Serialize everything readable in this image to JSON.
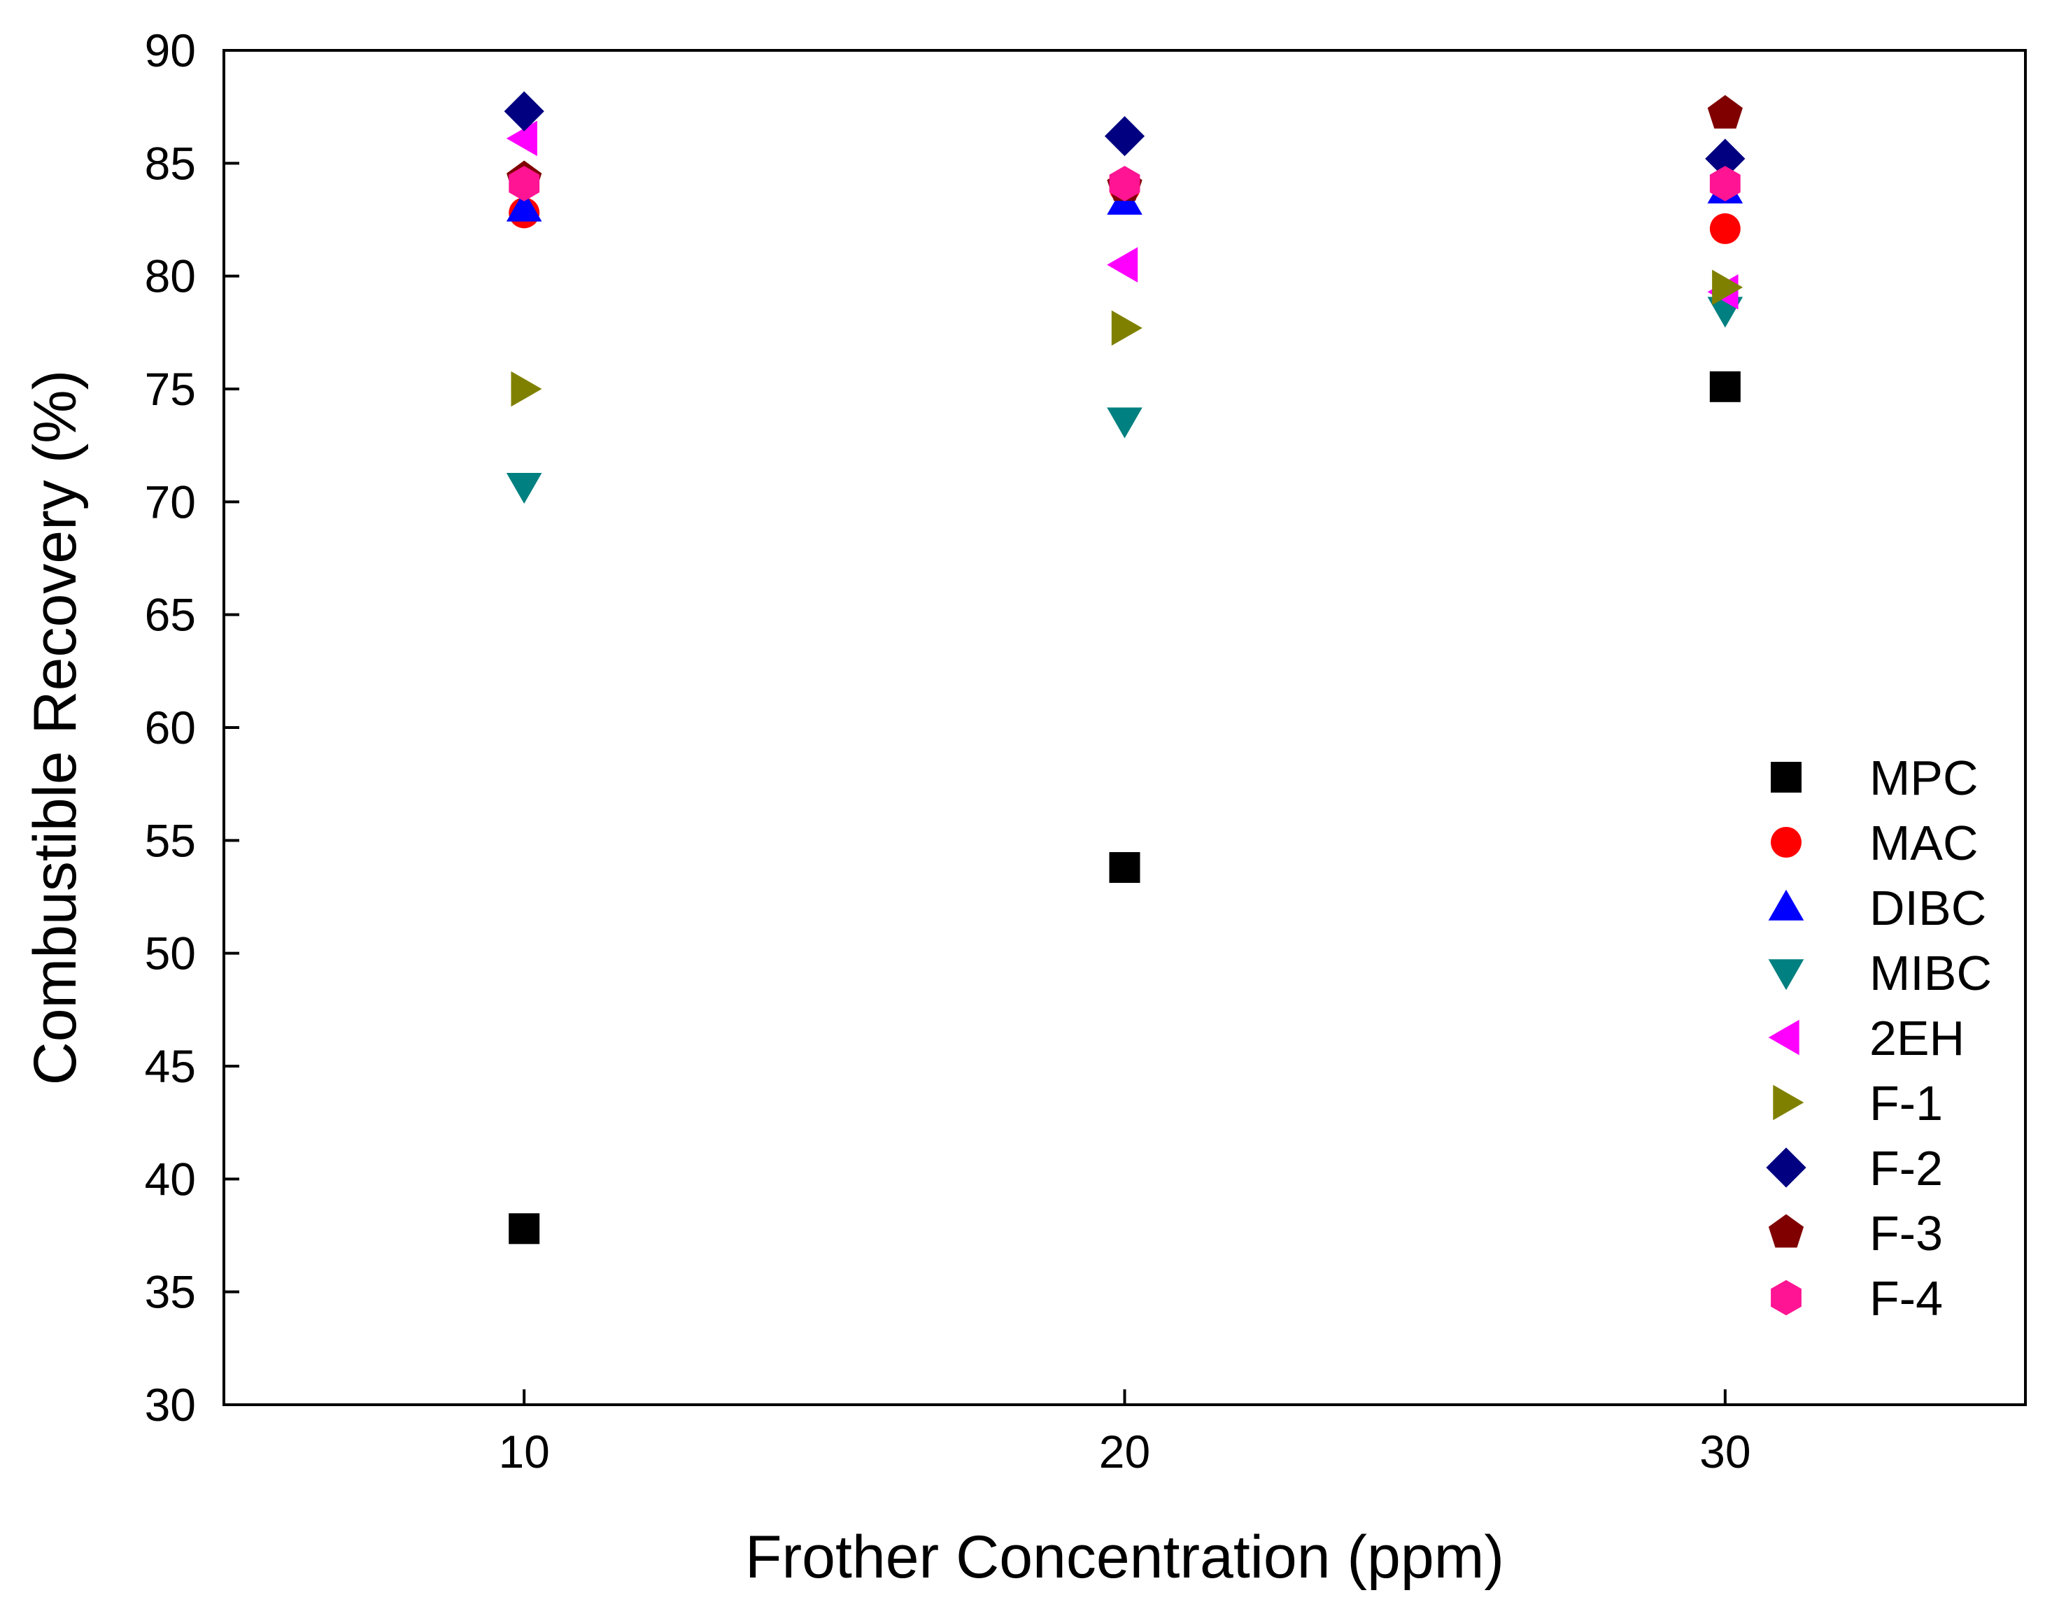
{
  "chart_data": {
    "type": "scatter",
    "title": "",
    "xlabel": "Frother Concentration (ppm)",
    "ylabel": "Combustible Recovery (%)",
    "xlim": [
      5,
      35
    ],
    "ylim": [
      30,
      90
    ],
    "x_ticks": [
      10,
      20,
      30
    ],
    "y_ticks": [
      30,
      35,
      40,
      45,
      50,
      55,
      60,
      65,
      70,
      75,
      80,
      85,
      90
    ],
    "grid": false,
    "legend_position": "lower-right",
    "series": [
      {
        "name": "MPC",
        "marker": "square",
        "color": "#000000",
        "x": [
          10,
          20,
          30
        ],
        "y": [
          37.8,
          53.8,
          75.1
        ]
      },
      {
        "name": "MAC",
        "marker": "circle",
        "color": "#ff0000",
        "x": [
          10,
          20,
          30
        ],
        "y": [
          82.8,
          83.9,
          82.1
        ]
      },
      {
        "name": "DIBC",
        "marker": "triangle-up",
        "color": "#0000ff",
        "x": [
          10,
          20,
          30
        ],
        "y": [
          83.0,
          83.3,
          83.8
        ]
      },
      {
        "name": "MIBC",
        "marker": "triangle-down",
        "color": "#008080",
        "x": [
          10,
          20,
          30
        ],
        "y": [
          70.7,
          73.6,
          78.5
        ]
      },
      {
        "name": "2EH",
        "marker": "triangle-left",
        "color": "#ff00ff",
        "x": [
          10,
          20,
          30
        ],
        "y": [
          86.1,
          80.5,
          79.3
        ]
      },
      {
        "name": "F-1",
        "marker": "triangle-right",
        "color": "#808000",
        "x": [
          10,
          20,
          30
        ],
        "y": [
          75.0,
          77.7,
          79.5
        ]
      },
      {
        "name": "F-2",
        "marker": "diamond",
        "color": "#000080",
        "x": [
          10,
          20,
          30
        ],
        "y": [
          87.3,
          86.2,
          85.2
        ]
      },
      {
        "name": "F-3",
        "marker": "pentagon",
        "color": "#800000",
        "x": [
          10,
          20,
          30
        ],
        "y": [
          84.3,
          84.0,
          87.2
        ]
      },
      {
        "name": "F-4",
        "marker": "hexagon",
        "color": "#ff1493",
        "x": [
          10,
          20,
          30
        ],
        "y": [
          84.1,
          84.1,
          84.1
        ]
      }
    ]
  }
}
